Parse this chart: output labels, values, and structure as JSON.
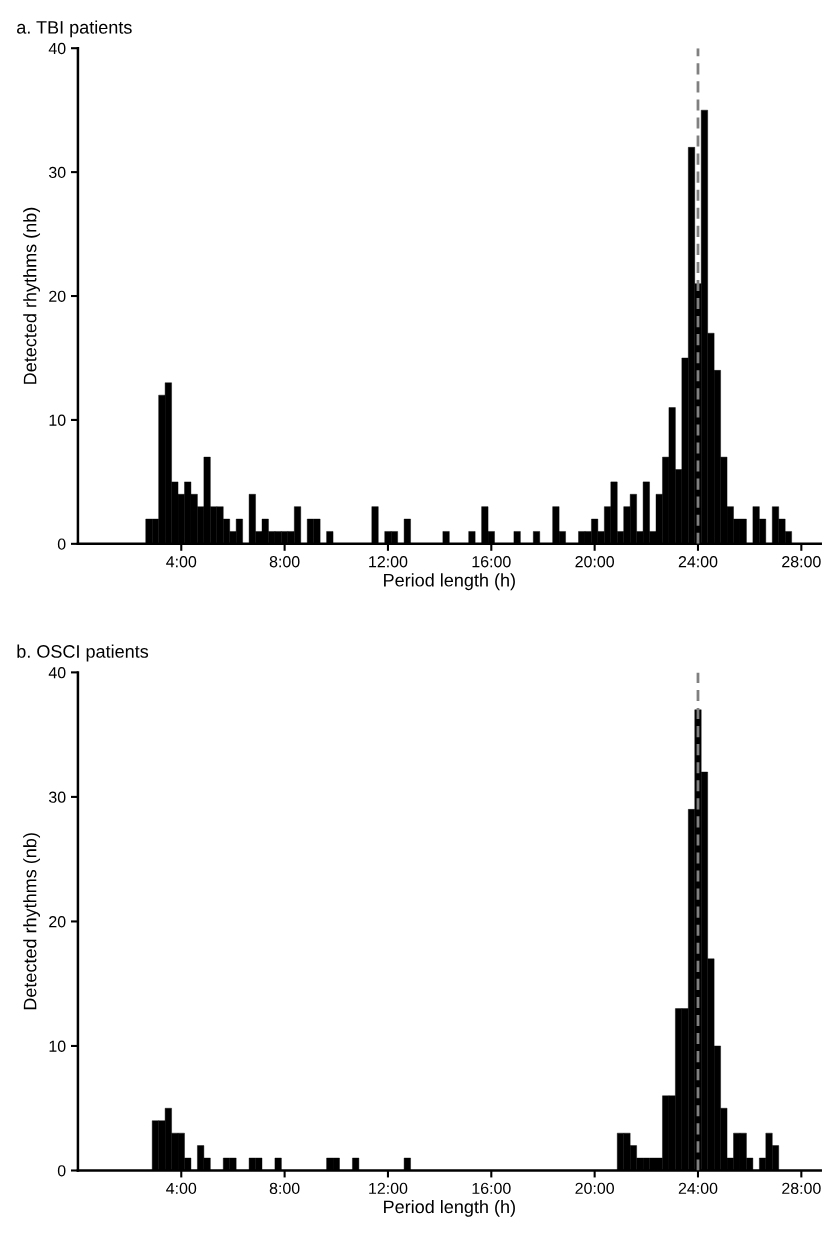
{
  "chart_data": [
    {
      "type": "histogram",
      "title": "a. TBI patients",
      "xlabel": "Period length (h)",
      "ylabel": "Detected rhythms (nb)",
      "color": "#000000",
      "bins": [
        2.625,
        2.875,
        3.125,
        3.375,
        3.625,
        3.875,
        4.125,
        4.375,
        4.625,
        4.875,
        5.125,
        5.375,
        5.625,
        5.875,
        6.125,
        6.375,
        6.625,
        6.875,
        7.125,
        7.375,
        7.625,
        7.875,
        8.125,
        8.375,
        8.625,
        8.875,
        9.125,
        9.375,
        9.625,
        9.875,
        10.125,
        10.375,
        10.625,
        10.875,
        11.125,
        11.375,
        11.625,
        11.875,
        12.125,
        12.375,
        12.625,
        12.875,
        13.125,
        13.375,
        13.625,
        13.875,
        14.125,
        14.375,
        14.625,
        14.875,
        15.125,
        15.375,
        15.625,
        15.875,
        16.125,
        16.375,
        16.625,
        16.875,
        17.125,
        17.375,
        17.625,
        17.875,
        18.125,
        18.375,
        18.625,
        18.875,
        19.125,
        19.375,
        19.625,
        19.875,
        20.125,
        20.375,
        20.625,
        20.875,
        21.125,
        21.375,
        21.625,
        21.875,
        22.125,
        22.375,
        22.625,
        22.875,
        23.125,
        23.375,
        23.625,
        23.875,
        24.125,
        24.375,
        24.625,
        24.875,
        25.125,
        25.375,
        25.625,
        25.875,
        26.125,
        26.375,
        26.625,
        26.875,
        27.125,
        27.375,
        27.625
      ],
      "values": [
        2,
        2,
        12,
        13,
        5,
        4,
        5,
        4,
        3,
        7,
        3,
        3,
        2,
        1,
        2,
        0,
        4,
        1,
        2,
        1,
        1,
        1,
        1,
        3,
        0,
        2,
        2,
        0,
        1,
        0,
        0,
        0,
        0,
        0,
        0,
        3,
        0,
        1,
        1,
        0,
        2,
        0,
        0,
        0,
        0,
        0,
        1,
        0,
        0,
        0,
        1,
        0,
        3,
        1,
        0,
        0,
        0,
        1,
        0,
        0,
        1,
        0,
        0,
        3,
        1,
        0,
        0,
        1,
        1,
        2,
        1,
        3,
        5,
        1,
        3,
        4,
        1,
        5,
        1,
        4,
        7,
        11,
        6,
        15,
        32,
        21,
        35,
        17,
        14,
        7,
        3,
        2,
        2,
        0,
        3,
        2,
        0,
        3,
        2,
        1
      ],
      "xlim": [
        0,
        28.75
      ],
      "xticks": [
        {
          "value": 4,
          "label": "4:00"
        },
        {
          "value": 8,
          "label": "8:00"
        },
        {
          "value": 12,
          "label": "12:00"
        },
        {
          "value": 16,
          "label": "16:00"
        },
        {
          "value": 20,
          "label": "20:00"
        },
        {
          "value": 24,
          "label": "24:00"
        },
        {
          "value": 28,
          "label": "28:00"
        }
      ],
      "ylim": [
        0,
        40
      ],
      "yticks": [
        0,
        10,
        20,
        30,
        40
      ],
      "ref_lines": [
        {
          "axis": "x",
          "value": 24,
          "color": "#808080",
          "line_style": "dashed"
        }
      ]
    },
    {
      "type": "histogram",
      "title": "b. OSCI patients",
      "xlabel": "Period length (h)",
      "ylabel": "Detected rhythms (nb)",
      "color": "#000000",
      "bins": [
        2.625,
        2.875,
        3.125,
        3.375,
        3.625,
        3.875,
        4.125,
        4.375,
        4.625,
        4.875,
        5.125,
        5.375,
        5.625,
        5.875,
        6.125,
        6.375,
        6.625,
        6.875,
        7.125,
        7.375,
        7.625,
        7.875,
        8.125,
        8.375,
        8.625,
        8.875,
        9.125,
        9.375,
        9.625,
        9.875,
        10.125,
        10.375,
        10.625,
        10.875,
        11.125,
        11.375,
        11.625,
        11.875,
        12.125,
        12.375,
        12.625,
        12.875,
        13.125,
        13.375,
        13.625,
        13.875,
        14.125,
        14.375,
        14.625,
        14.875,
        15.125,
        15.375,
        15.625,
        15.875,
        16.125,
        16.375,
        16.625,
        16.875,
        17.125,
        17.375,
        17.625,
        17.875,
        18.125,
        18.375,
        18.625,
        18.875,
        19.125,
        19.375,
        19.625,
        19.875,
        20.125,
        20.375,
        20.625,
        20.875,
        21.125,
        21.375,
        21.625,
        21.875,
        22.125,
        22.375,
        22.625,
        22.875,
        23.125,
        23.375,
        23.625,
        23.875,
        24.125,
        24.375,
        24.625,
        24.875,
        25.125,
        25.375,
        25.625,
        25.875,
        26.125,
        26.375,
        26.625,
        26.875,
        27.125,
        27.375,
        27.625
      ],
      "values": [
        0,
        4,
        4,
        5,
        3,
        3,
        1,
        0,
        2,
        1,
        0,
        0,
        1,
        1,
        0,
        0,
        1,
        1,
        0,
        0,
        1,
        0,
        0,
        0,
        0,
        0,
        0,
        0,
        1,
        1,
        0,
        0,
        1,
        0,
        0,
        0,
        0,
        0,
        0,
        0,
        1,
        0,
        0,
        0,
        0,
        0,
        0,
        0,
        0,
        0,
        0,
        0,
        0,
        0,
        0,
        0,
        0,
        0,
        0,
        0,
        0,
        0,
        0,
        0,
        0,
        0,
        0,
        0,
        0,
        0,
        0,
        0,
        0,
        3,
        3,
        2,
        1,
        1,
        1,
        1,
        6,
        6,
        13,
        13,
        29,
        37,
        32,
        17,
        10,
        5,
        1,
        3,
        3,
        1,
        0,
        1,
        3,
        2,
        0,
        0
      ],
      "xlim": [
        0,
        28.75
      ],
      "xticks": [
        {
          "value": 4,
          "label": "4:00"
        },
        {
          "value": 8,
          "label": "8:00"
        },
        {
          "value": 12,
          "label": "12:00"
        },
        {
          "value": 16,
          "label": "16:00"
        },
        {
          "value": 20,
          "label": "20:00"
        },
        {
          "value": 24,
          "label": "24:00"
        },
        {
          "value": 28,
          "label": "28:00"
        }
      ],
      "ylim": [
        0,
        40
      ],
      "yticks": [
        0,
        10,
        20,
        30,
        40
      ],
      "ref_lines": [
        {
          "axis": "x",
          "value": 24,
          "color": "#808080",
          "line_style": "dashed"
        }
      ]
    }
  ]
}
